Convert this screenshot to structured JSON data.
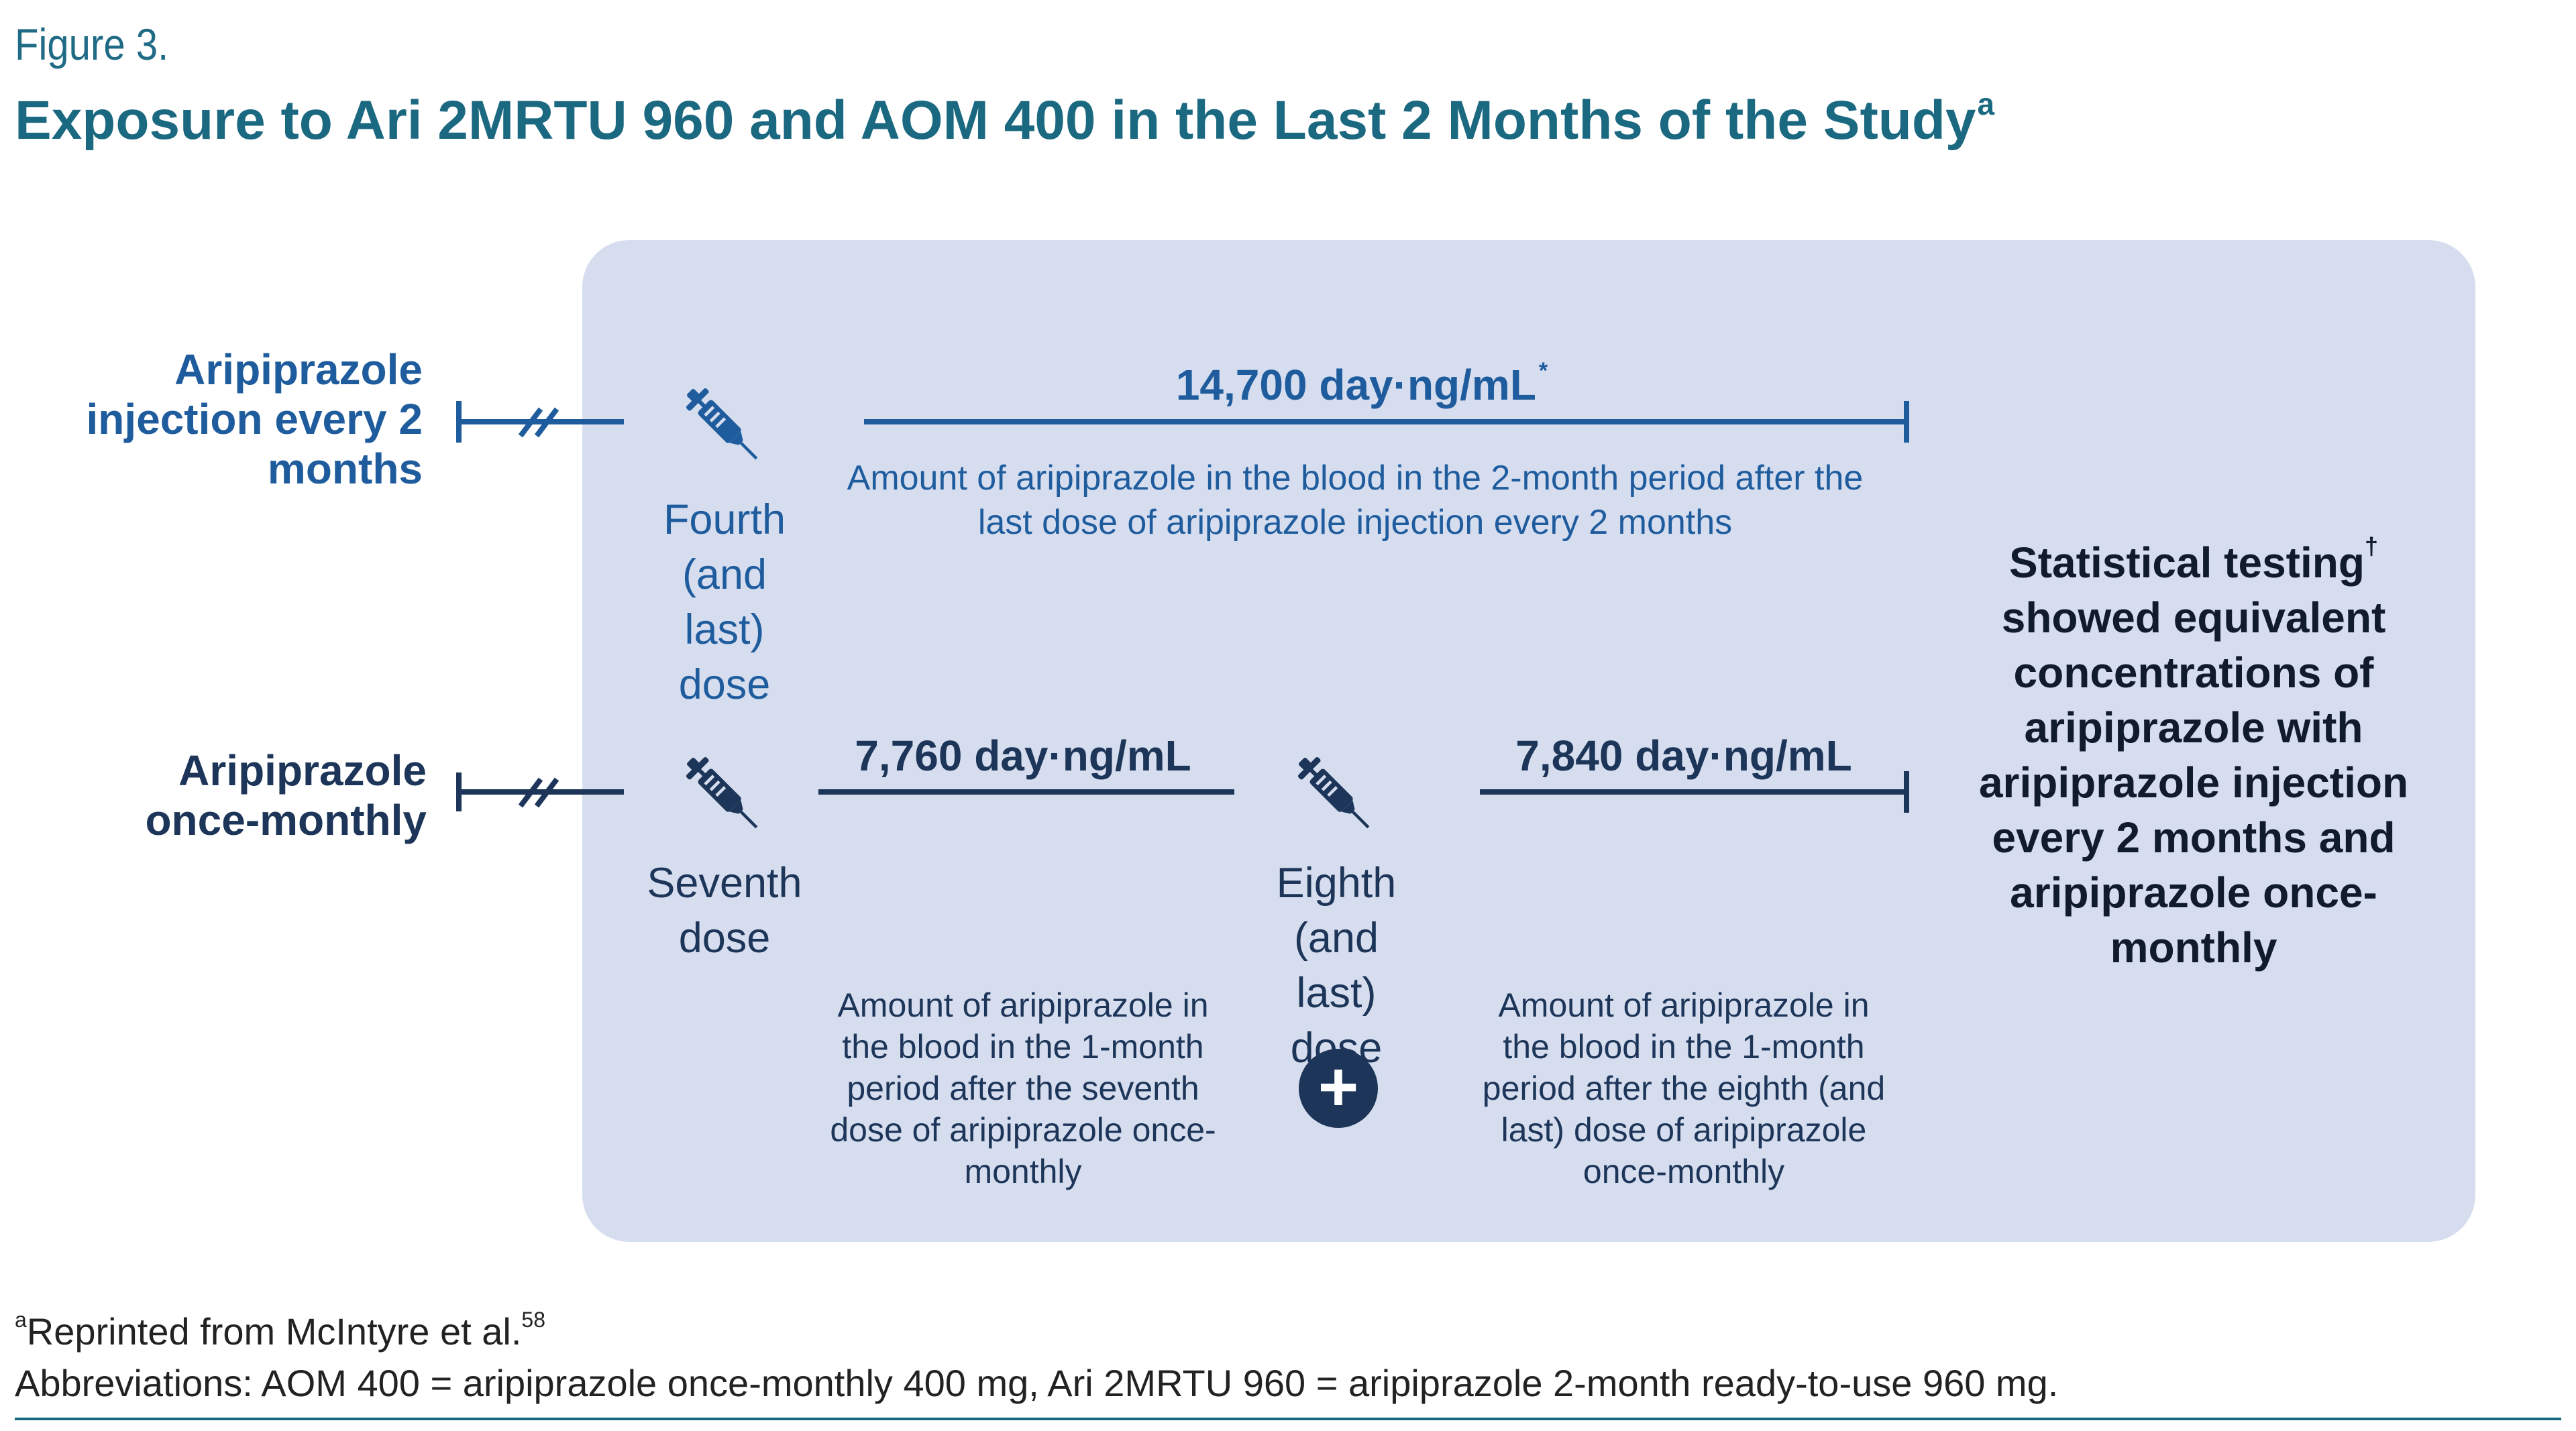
{
  "figure": {
    "label": "Figure 3.",
    "title": "Exposure to Ari 2MRTU 960 and AOM 400 in the Last 2 Months of the Study",
    "title_sup": "a"
  },
  "rows": {
    "two_month": {
      "label": "Aripiprazole injection every 2 months",
      "dose_label": "Fourth (and last) dose",
      "auc": "14,700 day·ng/mL",
      "auc_sup": "*",
      "description": "Amount of aripiprazole in the blood in the 2-month period after the last dose of aripiprazole injection every 2 months"
    },
    "once_monthly": {
      "label": "Aripiprazole once-monthly",
      "dose7_label": "Seventh dose",
      "dose8_label": "Eighth (and last) dose",
      "auc7": "7,760 day·ng/mL",
      "auc8": "7,840 day·ng/mL",
      "desc7": "Amount of aripiprazole in the blood in the 1-month period after the seventh dose of aripiprazole once-monthly",
      "desc8": "Amount of aripiprazole in the blood in the 1-month period after the eighth (and last) dose of aripiprazole once-monthly",
      "plus_symbol": "+"
    }
  },
  "conclusion": {
    "text_before_sup": "Statistical testing",
    "sup": "†",
    "text_after_sup": "showed equivalent concentrations of aripiprazole with aripiprazole injection every 2 months and aripiprazole once-monthly"
  },
  "footnotes": {
    "ref_sup": "a",
    "ref_text": "Reprinted from McIntyre et al.",
    "ref_num": "58",
    "abbreviations": "Abbreviations: AOM 400 = aripiprazole once-monthly 400 mg, Ari 2MRTU 960 = aripiprazole 2-month ready-to-use 960 mg."
  },
  "colors": {
    "title": "#1b6881",
    "two_month": "#1f5c9e",
    "once_monthly": "#1c3558",
    "panel": "#d6ddee"
  },
  "icons": [
    "syringe-icon",
    "plus-icon",
    "axis-break-icon"
  ]
}
